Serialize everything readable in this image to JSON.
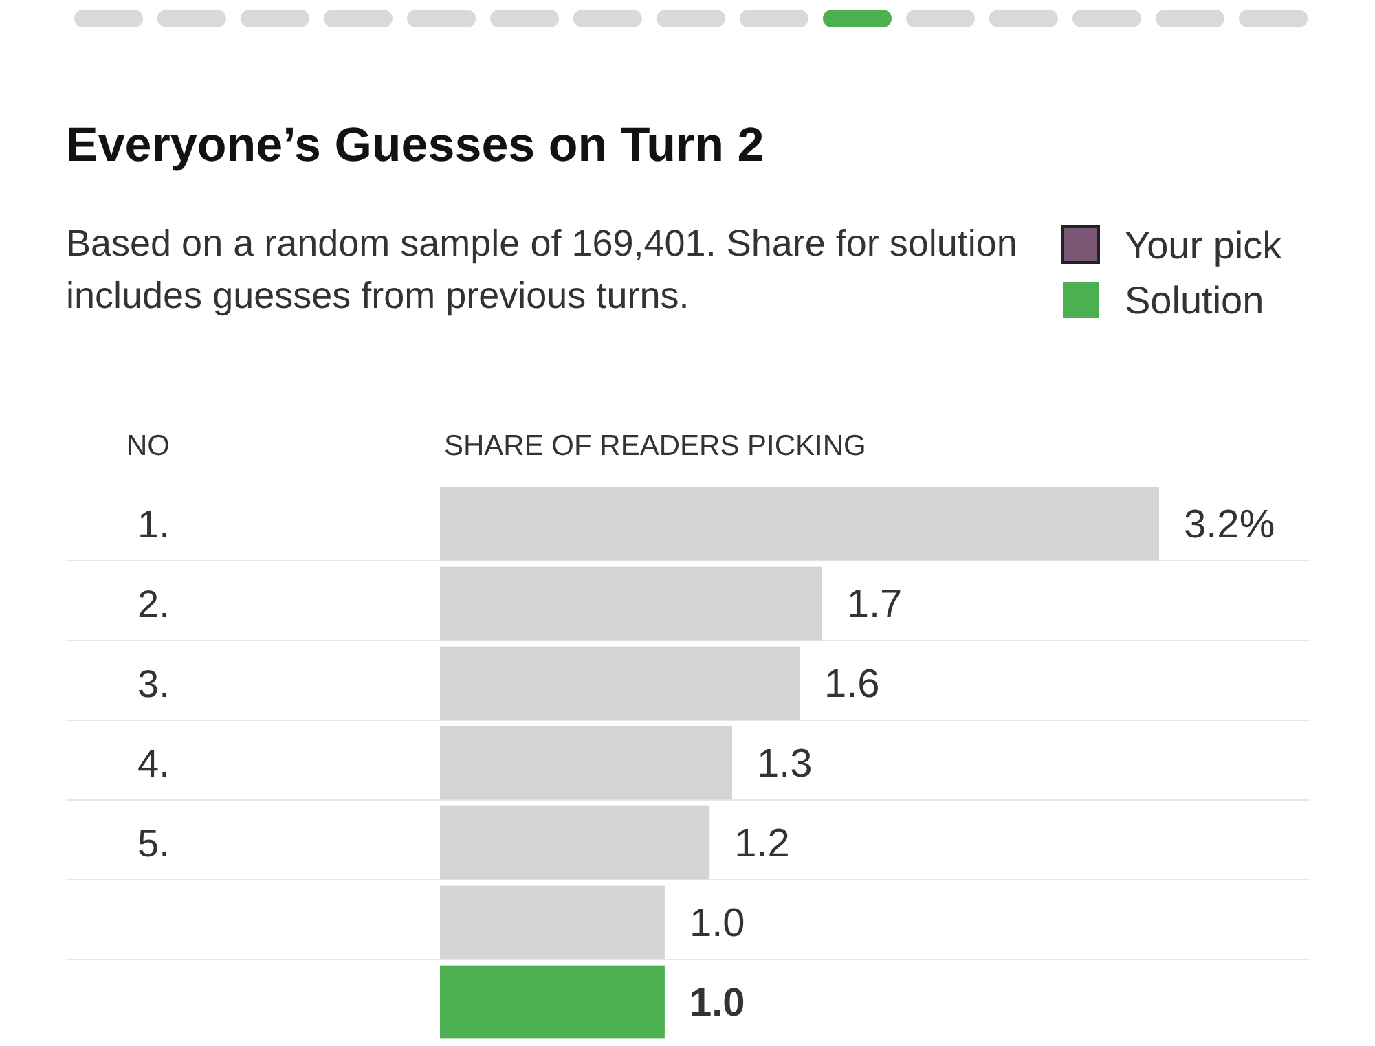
{
  "chart_data": {
    "type": "bar",
    "orientation": "horizontal",
    "title": "Everyone’s Guesses on Turn 2",
    "subtitle": "Based on a random sample of 169,401. Share for solution includes guesses from previous turns.",
    "xlabel": "SHARE OF READERS PICKING",
    "ylabel": "NO",
    "categories": [
      "1.",
      "2.",
      "3.",
      "4.",
      "5.",
      null,
      null
    ],
    "series": [
      {
        "color": "#d4d4d4",
        "values": [
          3.2,
          1.7,
          1.6,
          1.3,
          1.2,
          1.0,
          null
        ],
        "value_labels": [
          "3.2%",
          "1.7",
          "1.6",
          "1.3",
          "1.2",
          "1.0",
          null
        ]
      },
      {
        "name": "Your pick",
        "color": "#7b5776",
        "values": [
          null,
          null,
          null,
          null,
          null,
          null,
          null
        ]
      },
      {
        "name": "Solution",
        "color": "#4caf50",
        "values": [
          null,
          null,
          null,
          null,
          null,
          null,
          1.0
        ],
        "value_labels": [
          null,
          null,
          null,
          null,
          null,
          null,
          "1.0"
        ]
      }
    ],
    "legend": "top right"
  }
}
